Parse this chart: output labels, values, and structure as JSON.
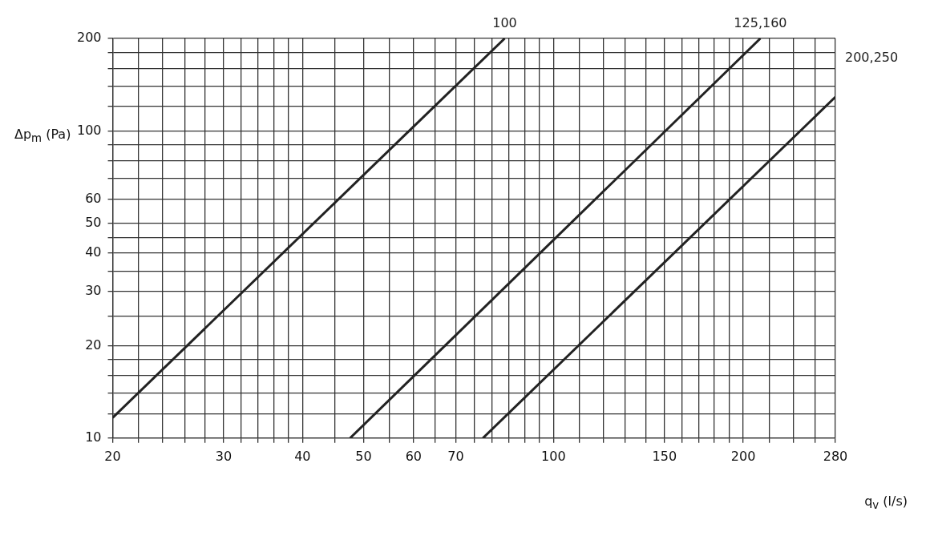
{
  "chart_data": {
    "type": "line",
    "xlabel": "q$_{v}$ (l/s)",
    "ylabel": "Δp$_{m}$ (Pa)",
    "log": "xy",
    "grid": true,
    "marker": "none",
    "line_style": "solid",
    "xlim": [
      20,
      280
    ],
    "ylim": [
      10,
      200
    ],
    "xticks": [
      20,
      {
        "value": 22,
        "label": null
      },
      {
        "value": 24,
        "label": null
      },
      {
        "value": 26,
        "label": null
      },
      {
        "value": 28,
        "label": null
      },
      30,
      {
        "value": 32,
        "label": null
      },
      {
        "value": 34,
        "label": null
      },
      {
        "value": 36,
        "label": null
      },
      {
        "value": 38,
        "label": null
      },
      40,
      {
        "value": 45,
        "label": null
      },
      50,
      {
        "value": 55,
        "label": null
      },
      60,
      {
        "value": 65,
        "label": null
      },
      70,
      {
        "value": 75,
        "label": null
      },
      {
        "value": 80,
        "label": null
      },
      {
        "value": 85,
        "label": null
      },
      {
        "value": 90,
        "label": null
      },
      {
        "value": 95,
        "label": null
      },
      100,
      {
        "value": 110,
        "label": null
      },
      {
        "value": 120,
        "label": null
      },
      {
        "value": 130,
        "label": null
      },
      {
        "value": 140,
        "label": null
      },
      150,
      {
        "value": 160,
        "label": null
      },
      {
        "value": 170,
        "label": null
      },
      {
        "value": 180,
        "label": null
      },
      {
        "value": 190,
        "label": null
      },
      200,
      {
        "value": 220,
        "label": null
      },
      {
        "value": 240,
        "label": null
      },
      {
        "value": 260,
        "label": null
      },
      280
    ],
    "yticks": [
      10,
      {
        "value": 12,
        "label": null
      },
      {
        "value": 14,
        "label": null
      },
      {
        "value": 16,
        "label": null
      },
      {
        "value": 18,
        "label": null
      },
      20,
      {
        "value": 25,
        "label": null
      },
      30,
      {
        "value": 35,
        "label": null
      },
      40,
      {
        "value": 45,
        "label": null
      },
      50,
      60,
      {
        "value": 70,
        "label": null
      },
      {
        "value": 80,
        "label": null
      },
      {
        "value": 90,
        "label": null
      },
      100,
      {
        "value": 120,
        "label": null
      },
      {
        "value": 140,
        "label": null
      },
      {
        "value": 160,
        "label": null
      },
      {
        "value": 180,
        "label": null
      },
      200
    ],
    "series": [
      {
        "name": "100",
        "color": "#222222",
        "x": [
          20,
          83.7
        ],
        "values": [
          11.65,
          200
        ]
      },
      {
        "name": "125,160",
        "color": "#222222",
        "x": [
          47.6,
          212.9
        ],
        "values": [
          10,
          200
        ]
      },
      {
        "name": "200,250",
        "color": "#222222",
        "x": [
          77.3,
          280
        ],
        "values": [
          10,
          129
        ]
      }
    ]
  }
}
